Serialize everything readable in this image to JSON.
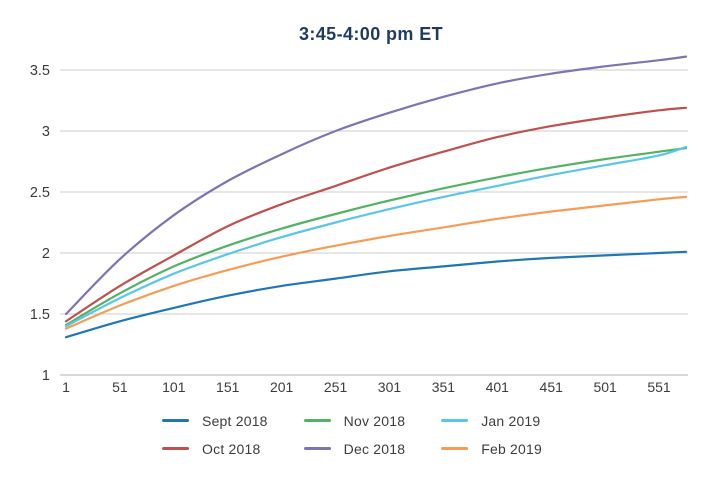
{
  "chart_data": {
    "type": "line",
    "title": "3:45-4:00 pm ET",
    "title_color": "#1e3c5e",
    "xlabel": "",
    "ylabel": "",
    "x": [
      1,
      51,
      101,
      151,
      201,
      251,
      301,
      351,
      401,
      451,
      501,
      551,
      576
    ],
    "x_tick_labels": [
      "1",
      "51",
      "101",
      "151",
      "201",
      "251",
      "301",
      "351",
      "401",
      "451",
      "501",
      "551"
    ],
    "x_ticks": [
      1,
      51,
      101,
      151,
      201,
      251,
      301,
      351,
      401,
      451,
      501,
      551
    ],
    "y_ticks": [
      1,
      1.5,
      2,
      2.5,
      3,
      3.5
    ],
    "y_tick_labels": [
      "1",
      "1.5",
      "2",
      "2.5",
      "3",
      "3.5"
    ],
    "xlim": [
      1,
      576
    ],
    "ylim": [
      1,
      3.5
    ],
    "grid": "horizontal-only",
    "gridline_color": "#cdcdcd",
    "legend_position": "bottom",
    "series": [
      {
        "name": "Sept 2018",
        "color": "#1f77b4",
        "values": [
          1.31,
          1.44,
          1.55,
          1.65,
          1.73,
          1.79,
          1.85,
          1.89,
          1.93,
          1.96,
          1.98,
          2.0,
          2.01
        ]
      },
      {
        "name": "Oct 2018",
        "color": "#c0504d",
        "values": [
          1.44,
          1.73,
          1.98,
          2.22,
          2.4,
          2.55,
          2.7,
          2.83,
          2.95,
          3.04,
          3.11,
          3.17,
          3.19
        ]
      },
      {
        "name": "Nov 2018",
        "color": "#53b365",
        "values": [
          1.41,
          1.67,
          1.89,
          2.06,
          2.2,
          2.32,
          2.43,
          2.53,
          2.62,
          2.7,
          2.77,
          2.83,
          2.86
        ]
      },
      {
        "name": "Dec 2018",
        "color": "#8172b2",
        "values": [
          1.5,
          1.95,
          2.31,
          2.59,
          2.81,
          3.0,
          3.15,
          3.28,
          3.39,
          3.47,
          3.53,
          3.58,
          3.61
        ]
      },
      {
        "name": "Jan 2019",
        "color": "#5bc6e8",
        "values": [
          1.4,
          1.63,
          1.83,
          1.99,
          2.13,
          2.25,
          2.36,
          2.46,
          2.55,
          2.64,
          2.72,
          2.8,
          2.87
        ]
      },
      {
        "name": "Feb 2019",
        "color": "#f59d56",
        "values": [
          1.38,
          1.57,
          1.73,
          1.86,
          1.97,
          2.06,
          2.14,
          2.21,
          2.28,
          2.34,
          2.39,
          2.44,
          2.46
        ]
      }
    ]
  }
}
